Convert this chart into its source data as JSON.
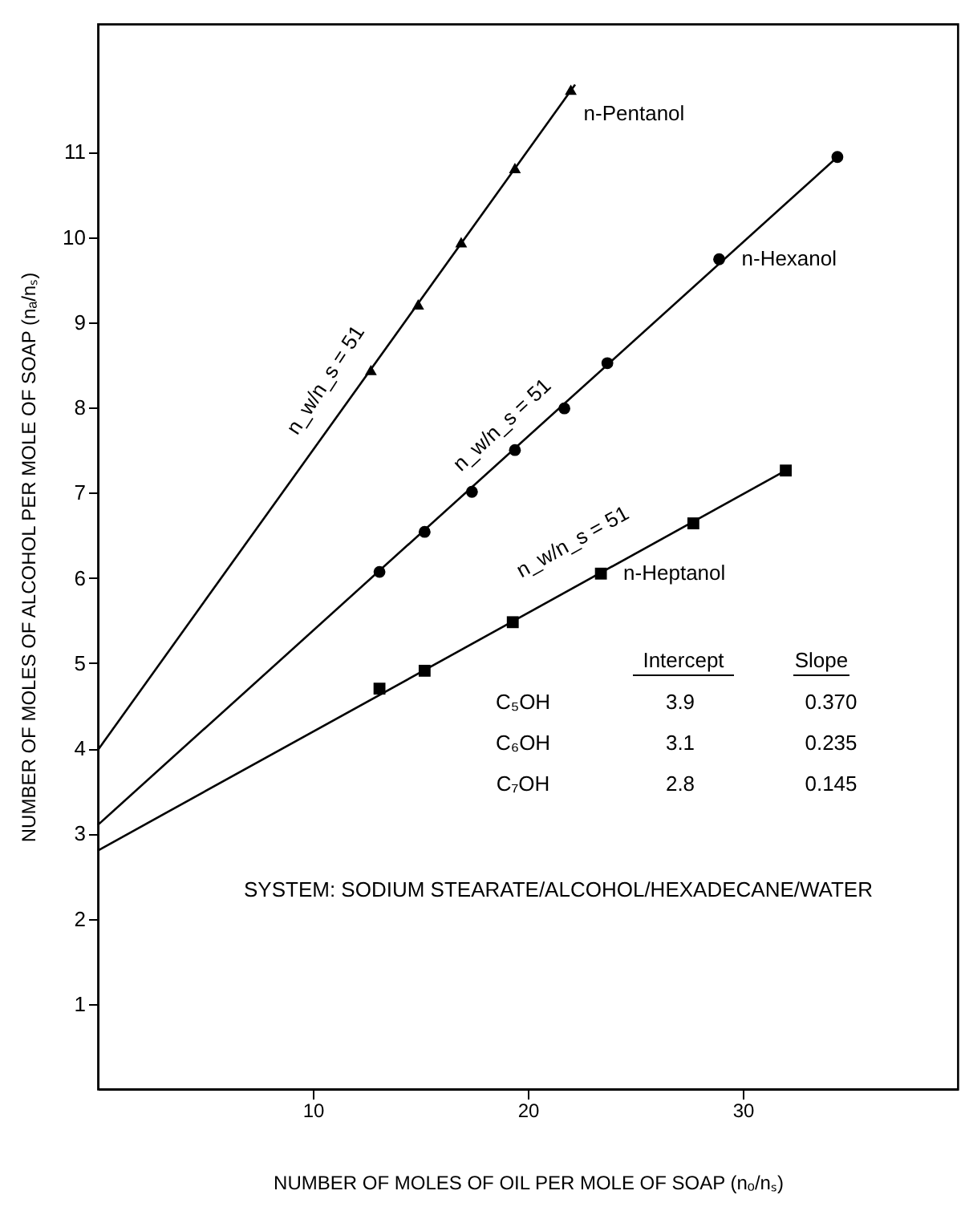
{
  "chart_data": {
    "type": "scatter",
    "xlabel": "NUMBER OF MOLES OF OIL PER MOLE OF SOAP (nₒ/nₛ)",
    "ylabel": "NUMBER OF MOLES OF ALCOHOL PER MOLE OF SOAP (nₐ/nₛ)",
    "xlim": [
      0,
      40
    ],
    "ylim": [
      0,
      12.5
    ],
    "xticks": [
      10,
      20,
      30
    ],
    "yticks": [
      1,
      2,
      3,
      4,
      5,
      6,
      7,
      8,
      9,
      10,
      11
    ],
    "grid": false,
    "legend": false,
    "line_style": "solid",
    "series": [
      {
        "name": "n-Pentanol",
        "color": "#000000",
        "marker": "triangle",
        "x": [
          12.7,
          14.9,
          16.9,
          19.4,
          22.0
        ],
        "values": [
          8.44,
          9.21,
          9.94,
          10.81,
          11.73
        ]
      },
      {
        "name": "n-Hexanol",
        "color": "#000000",
        "marker": "circle",
        "x": [
          13.1,
          15.2,
          17.4,
          19.4,
          21.7,
          23.7,
          28.9,
          34.4
        ],
        "values": [
          6.07,
          6.54,
          7.01,
          7.5,
          7.99,
          8.52,
          9.74,
          10.94
        ]
      },
      {
        "name": "n-Heptanol",
        "color": "#000000",
        "marker": "square",
        "x": [
          13.1,
          15.2,
          19.3,
          23.4,
          27.7,
          32.0
        ],
        "values": [
          4.7,
          4.91,
          5.48,
          6.05,
          6.64,
          7.26
        ]
      },
      {
        "type": "line",
        "color": "#000000",
        "marker": "none",
        "x": [
          0,
          22.2
        ],
        "values": [
          3.98,
          11.79
        ]
      },
      {
        "type": "line",
        "color": "#000000",
        "marker": "none",
        "x": [
          0,
          34.4
        ],
        "values": [
          3.1,
          10.94
        ]
      },
      {
        "type": "line",
        "color": "#000000",
        "marker": "none",
        "x": [
          0,
          32.0
        ],
        "values": [
          2.8,
          7.26
        ]
      }
    ],
    "annotations": [
      "n_w/n_s = 51",
      "n_w/n_s = 51",
      "n_w/n_s = 51",
      "Intercept",
      "Slope",
      "C₅OH",
      "3.9",
      "0.370",
      "C₆OH",
      "3.1",
      "0.235",
      "C₇OH",
      "2.8",
      "0.145",
      "SYSTEM: SODIUM STEARATE/ALCOHOL/HEXADECANE/WATER"
    ]
  }
}
